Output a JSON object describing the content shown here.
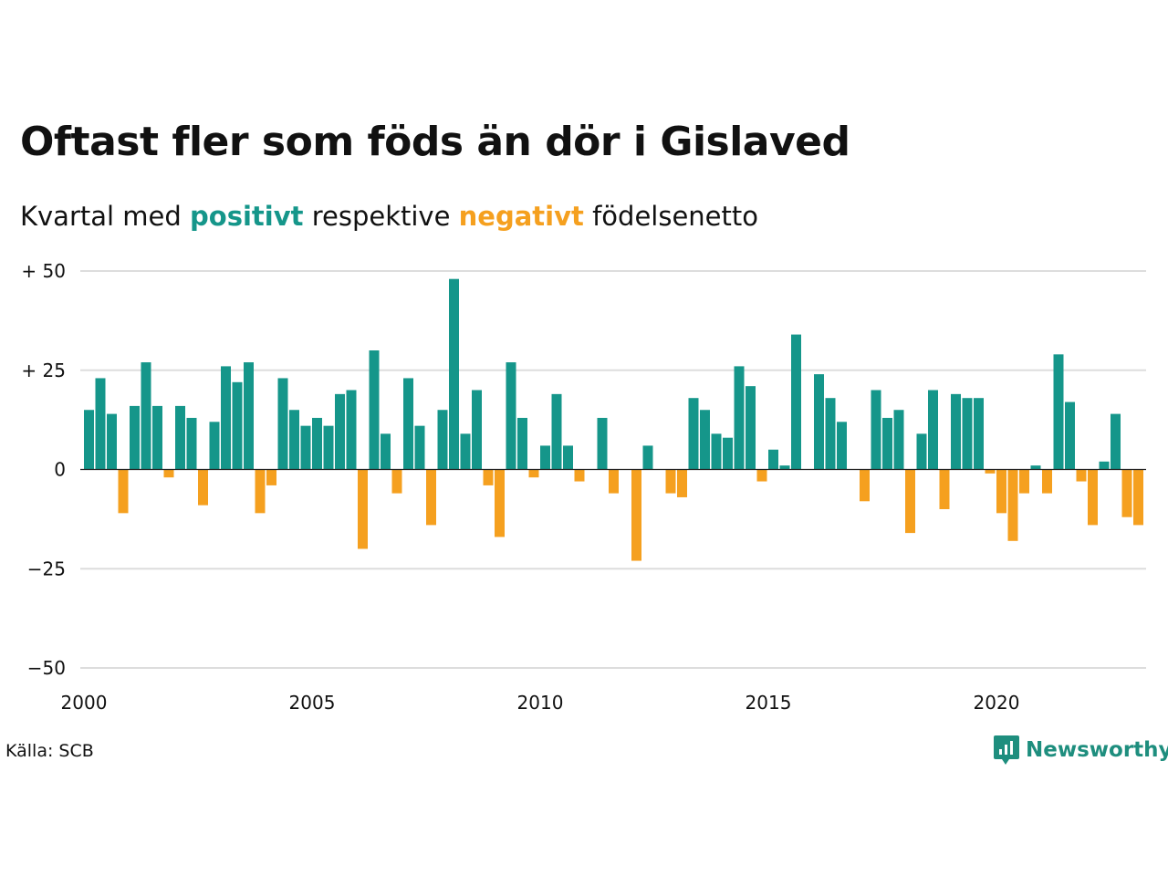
{
  "title": "Oftast fler som föds än dör i Gislaved",
  "subtitle": {
    "prefix": "Kvartal med",
    "positive_word": "positivt",
    "middle": "respektive",
    "negative_word": "negativt",
    "suffix": "födelsenetto"
  },
  "source": "Källa: SCB",
  "brand": "Newsworthy",
  "colors": {
    "positive": "#15968a",
    "negative": "#f5a01f",
    "grid": "#dddddd",
    "brand": "#1e8e7e"
  },
  "chart_data": {
    "type": "bar",
    "x_start_year": 2000,
    "periods_per_year": 4,
    "ylim": [
      -50,
      50
    ],
    "y_ticks": [
      {
        "value": 50,
        "label": "+ 50"
      },
      {
        "value": 25,
        "label": "+ 25"
      },
      {
        "value": 0,
        "label": "0"
      },
      {
        "value": -25,
        "label": "−25"
      },
      {
        "value": -50,
        "label": "−50"
      }
    ],
    "x_ticks": [
      "2000",
      "2005",
      "2010",
      "2015",
      "2020"
    ],
    "values": [
      15,
      23,
      14,
      -11,
      16,
      27,
      16,
      -2,
      16,
      13,
      -9,
      12,
      26,
      22,
      27,
      -11,
      -4,
      23,
      15,
      11,
      13,
      11,
      19,
      20,
      -20,
      30,
      9,
      -6,
      23,
      11,
      -14,
      15,
      48,
      9,
      20,
      -4,
      -17,
      27,
      13,
      -2,
      6,
      19,
      6,
      -3,
      0,
      13,
      -6,
      0,
      -23,
      6,
      0,
      -6,
      -7,
      18,
      15,
      9,
      8,
      26,
      21,
      -3,
      5,
      1,
      34,
      0,
      24,
      18,
      12,
      0,
      -8,
      20,
      13,
      15,
      -16,
      9,
      20,
      -10,
      19,
      18,
      18,
      -1,
      -11,
      -18,
      -6,
      1,
      -6,
      29,
      17,
      -3,
      -14,
      2,
      14,
      -12,
      -14
    ],
    "xlabel": "",
    "ylabel": "",
    "grid": true,
    "legend": "none"
  }
}
